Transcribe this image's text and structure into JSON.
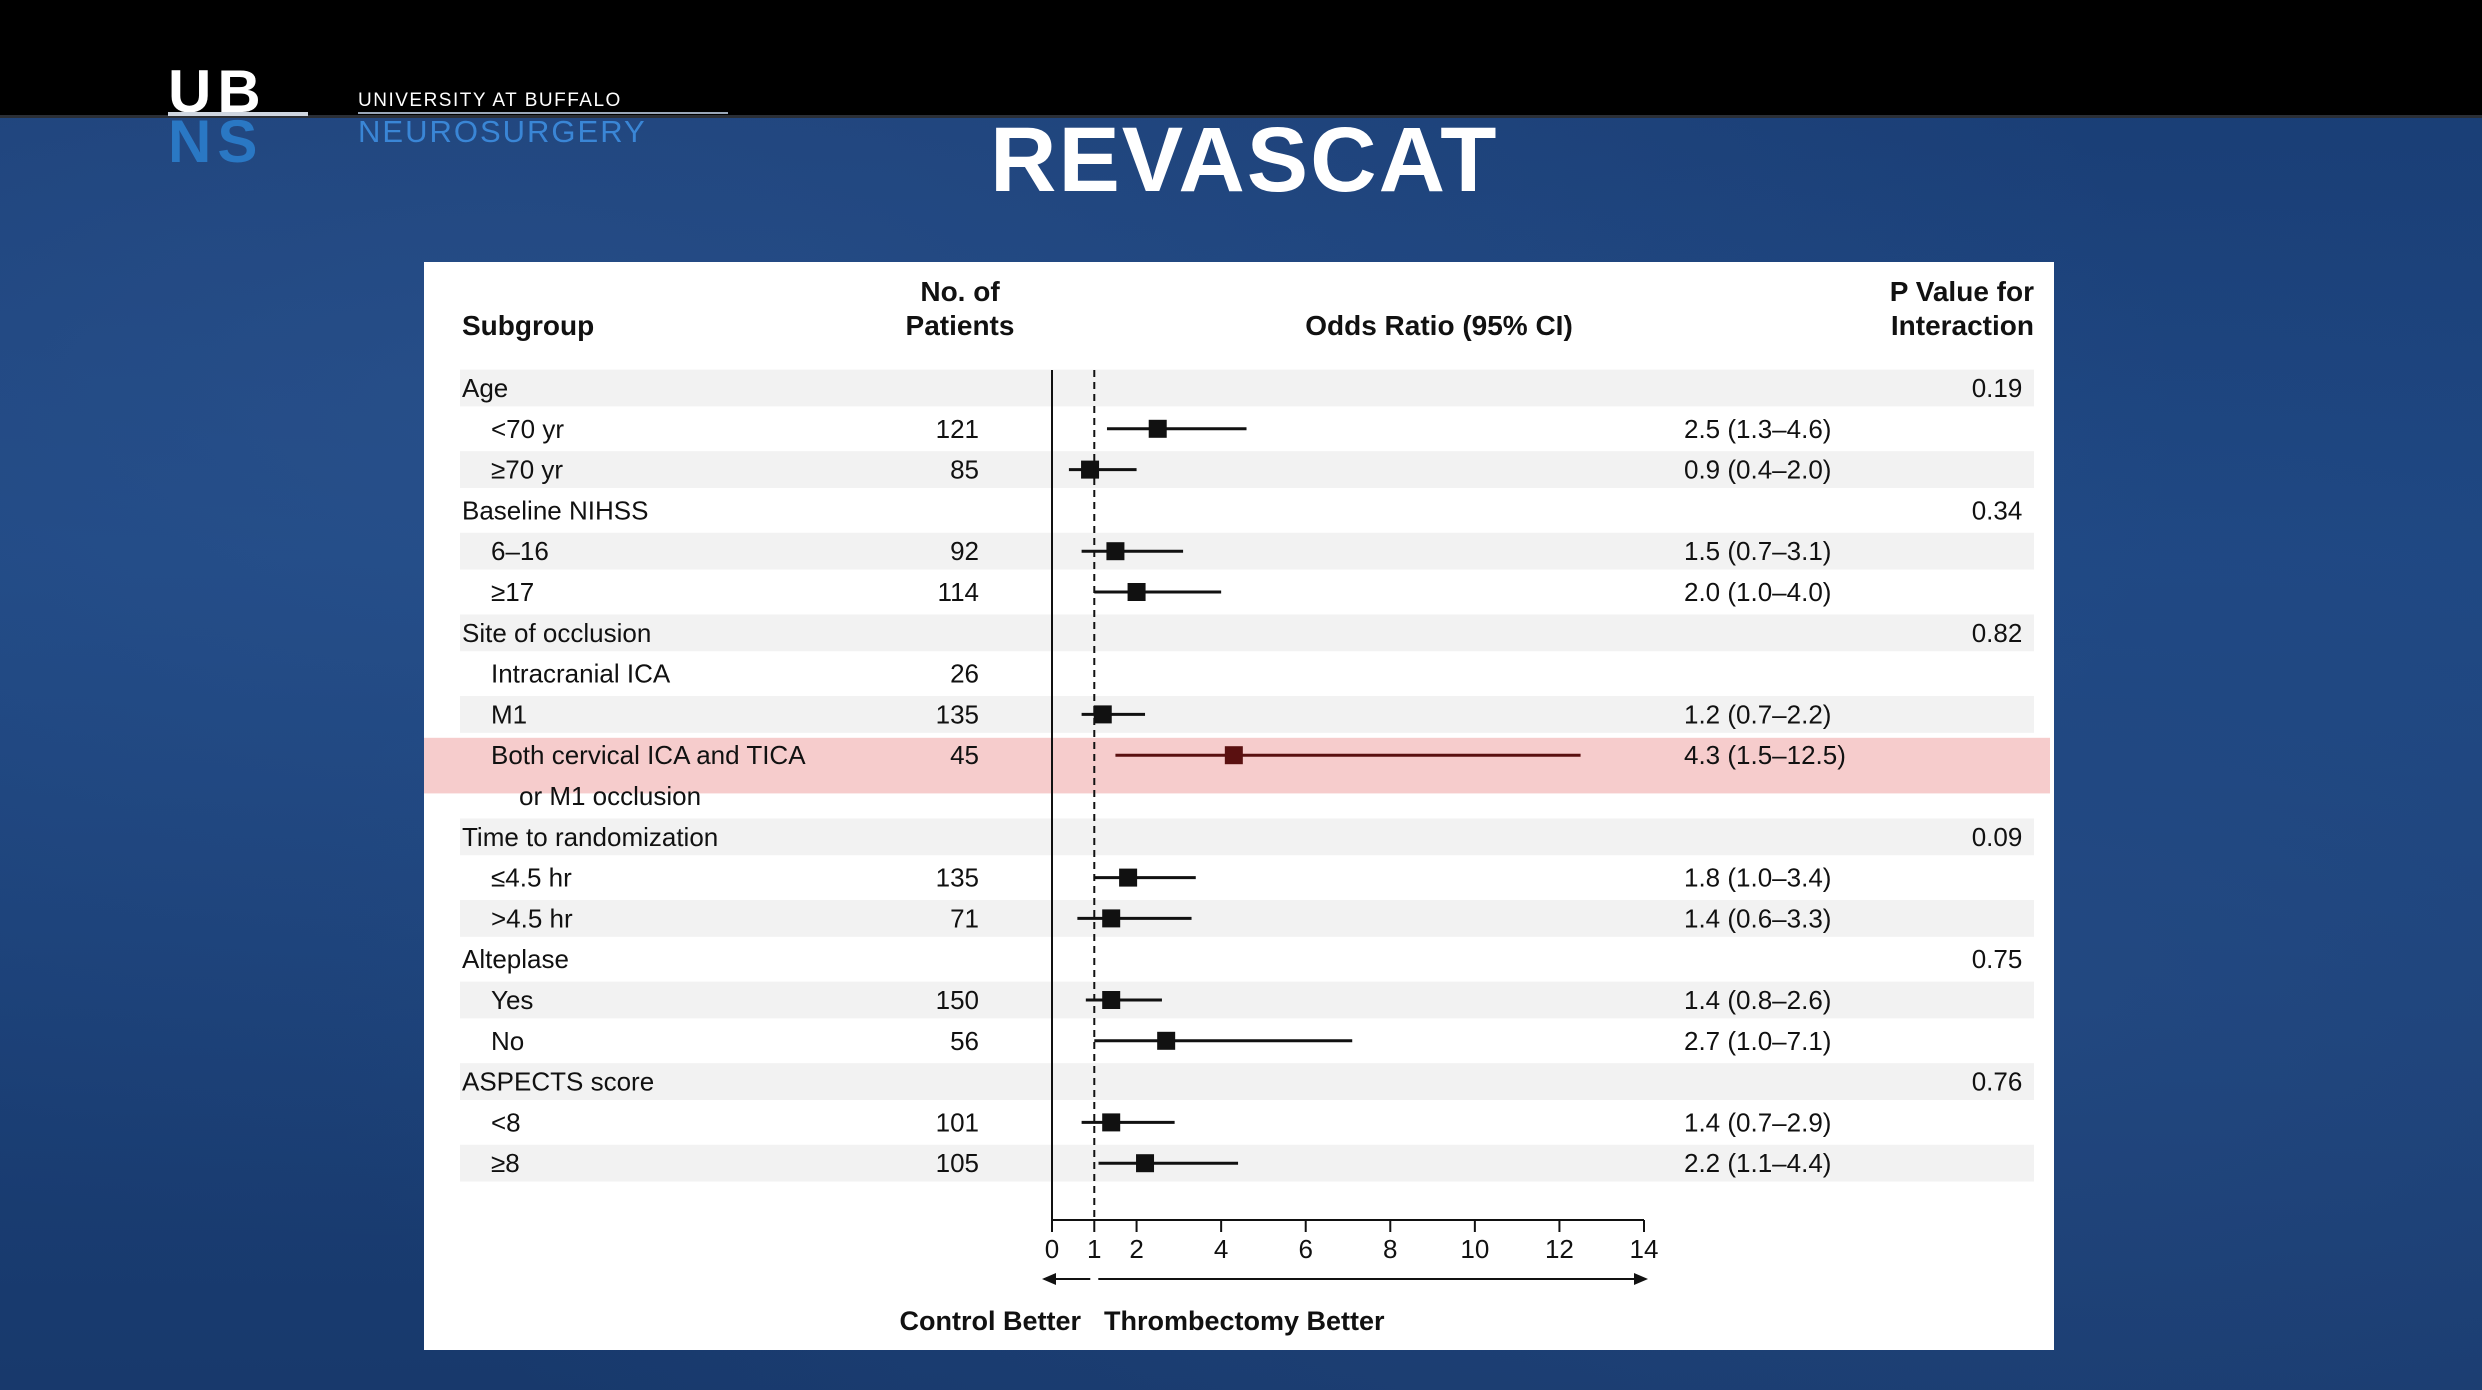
{
  "header": {
    "logo_top": "UB",
    "logo_bottom": "NS",
    "org_line1": "UNIVERSITY AT BUFFALO",
    "org_line2": "NEUROSURGERY",
    "slide_title": "REVASCAT"
  },
  "colors": {
    "logo_blue": "#2a78c4",
    "highlight_row": "#f6cccc",
    "stripe_row": "#f2f2f2",
    "background_blue": "#1c4580"
  },
  "chart_data": {
    "type": "forest",
    "columns": {
      "subgroup": "Subgroup",
      "patients_line1": "No. of",
      "patients_line2": "Patients",
      "or": "Odds Ratio (95% CI)",
      "p_line1": "P Value for",
      "p_line2": "Interaction"
    },
    "x_axis": {
      "range": [
        0,
        14
      ],
      "ticks": [
        0,
        1,
        2,
        4,
        6,
        8,
        10,
        12,
        14
      ],
      "reference_line": 1,
      "left_label": "Control Better",
      "right_label": "Thrombectomy Better"
    },
    "rows": [
      {
        "label": "Age",
        "header": true,
        "p": "0.19"
      },
      {
        "label": "<70 yr",
        "n": "121",
        "or": 2.5,
        "lo": 1.3,
        "hi": 4.6,
        "text": "2.5 (1.3–4.6)"
      },
      {
        "label": "≥70 yr",
        "n": "85",
        "or": 0.9,
        "lo": 0.4,
        "hi": 2.0,
        "text": "0.9 (0.4–2.0)"
      },
      {
        "label": "Baseline NIHSS",
        "header": true,
        "p": "0.34"
      },
      {
        "label": "6–16",
        "n": "92",
        "or": 1.5,
        "lo": 0.7,
        "hi": 3.1,
        "text": "1.5 (0.7–3.1)"
      },
      {
        "label": "≥17",
        "n": "114",
        "or": 2.0,
        "lo": 1.0,
        "hi": 4.0,
        "text": "2.0 (1.0–4.0)"
      },
      {
        "label": "Site of occlusion",
        "header": true,
        "p": "0.82"
      },
      {
        "label": "Intracranial ICA",
        "n": "26"
      },
      {
        "label": "M1",
        "n": "135",
        "or": 1.2,
        "lo": 0.7,
        "hi": 2.2,
        "text": "1.2 (0.7–2.2)"
      },
      {
        "label": "Both cervical ICA and TICA",
        "label2": "or M1 occlusion",
        "n": "45",
        "or": 4.3,
        "lo": 1.5,
        "hi": 12.5,
        "text": "4.3 (1.5–12.5)",
        "highlight": true
      },
      {
        "label": "Time to randomization",
        "header": true,
        "p": "0.09"
      },
      {
        "label": "≤4.5 hr",
        "n": "135",
        "or": 1.8,
        "lo": 1.0,
        "hi": 3.4,
        "text": "1.8 (1.0–3.4)"
      },
      {
        "label": ">4.5 hr",
        "n": "71",
        "or": 1.4,
        "lo": 0.6,
        "hi": 3.3,
        "text": "1.4 (0.6–3.3)"
      },
      {
        "label": "Alteplase",
        "header": true,
        "p": "0.75"
      },
      {
        "label": "Yes",
        "n": "150",
        "or": 1.4,
        "lo": 0.8,
        "hi": 2.6,
        "text": "1.4 (0.8–2.6)"
      },
      {
        "label": "No",
        "n": "56",
        "or": 2.7,
        "lo": 1.0,
        "hi": 7.1,
        "text": "2.7 (1.0–7.1)"
      },
      {
        "label": "ASPECTS score",
        "header": true,
        "p": "0.76"
      },
      {
        "label": "<8",
        "n": "101",
        "or": 1.4,
        "lo": 0.7,
        "hi": 2.9,
        "text": "1.4 (0.7–2.9)"
      },
      {
        "label": "≥8",
        "n": "105",
        "or": 2.2,
        "lo": 1.1,
        "hi": 4.4,
        "text": "2.2 (1.1–4.4)"
      }
    ]
  }
}
